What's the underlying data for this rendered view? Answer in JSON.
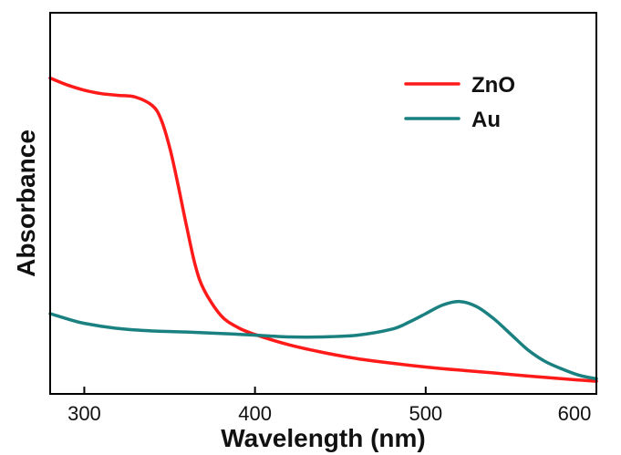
{
  "chart_data": {
    "type": "line",
    "title": "",
    "xlabel": "Wavelength (nm)",
    "ylabel": "Absorbance",
    "xlim": [
      280,
      600
    ],
    "ylim": [
      0,
      1
    ],
    "x_ticks": [
      300,
      400,
      500,
      600
    ],
    "grid": false,
    "legend_position": "top-right",
    "series": [
      {
        "name": "ZnO",
        "color": "#ff1a1a",
        "x": [
          280,
          290,
          300,
          310,
          320,
          330,
          340,
          345,
          350,
          355,
          360,
          365,
          370,
          380,
          390,
          400,
          420,
          440,
          460,
          480,
          500,
          520,
          540,
          560,
          580,
          600
        ],
        "y": [
          0.88,
          0.86,
          0.845,
          0.835,
          0.83,
          0.825,
          0.8,
          0.76,
          0.68,
          0.57,
          0.45,
          0.34,
          0.27,
          0.195,
          0.16,
          0.14,
          0.11,
          0.088,
          0.07,
          0.057,
          0.046,
          0.037,
          0.029,
          0.02,
          0.012,
          0.005
        ]
      },
      {
        "name": "Au",
        "color": "#1a8080",
        "x": [
          280,
          290,
          300,
          320,
          340,
          360,
          380,
          400,
          420,
          440,
          460,
          480,
          490,
          500,
          510,
          520,
          530,
          540,
          550,
          560,
          570,
          580,
          590,
          600
        ],
        "y": [
          0.2,
          0.185,
          0.172,
          0.157,
          0.15,
          0.147,
          0.143,
          0.138,
          0.133,
          0.133,
          0.138,
          0.155,
          0.175,
          0.2,
          0.225,
          0.235,
          0.22,
          0.185,
          0.14,
          0.095,
          0.062,
          0.04,
          0.022,
          0.012
        ]
      }
    ]
  }
}
